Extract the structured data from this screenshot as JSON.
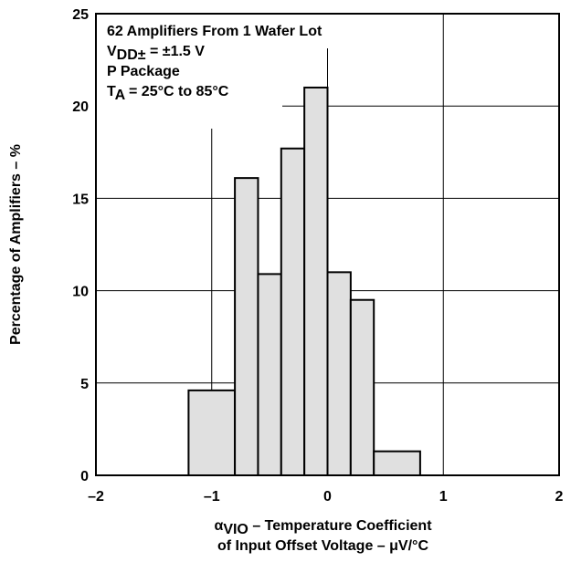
{
  "chart_data": {
    "type": "histogram",
    "bins": [
      -1.2,
      -0.8,
      -0.6,
      -0.4,
      -0.2,
      0,
      0.2,
      0.4,
      0.8
    ],
    "values": [
      4.6,
      16.1,
      10.9,
      17.7,
      21.0,
      11.0,
      9.5,
      1.3
    ],
    "color": "#e0e0e0",
    "xlim": [
      -2,
      2
    ],
    "ylim": [
      0,
      25
    ],
    "xticks": [
      {
        "value": -2,
        "label": "–2"
      },
      {
        "value": -1,
        "label": "–1"
      },
      0,
      1,
      2
    ],
    "yticks": [
      0,
      5,
      10,
      15,
      20,
      25
    ],
    "grid": true,
    "ylabel": "Percentage of Amplifiers – %",
    "xlabel": [
      [
        {
          "text": "α"
        },
        {
          "text": "VIO",
          "sub": true
        },
        {
          "text": " – Temperature Coefficient"
        }
      ],
      [
        {
          "text": "of Input Offset Voltage – μV/°C"
        }
      ]
    ],
    "annotation": [
      [
        {
          "text": "62 Amplifiers From 1 Wafer Lot"
        }
      ],
      [
        {
          "text": "V"
        },
        {
          "text": "DD±",
          "sub": true
        },
        {
          "text": " = ±1.5 V"
        }
      ],
      [
        {
          "text": "P Package"
        }
      ],
      [
        {
          "text": "T"
        },
        {
          "text": "A",
          "sub": true
        },
        {
          "text": " = 25°C to 85°C"
        }
      ]
    ]
  }
}
